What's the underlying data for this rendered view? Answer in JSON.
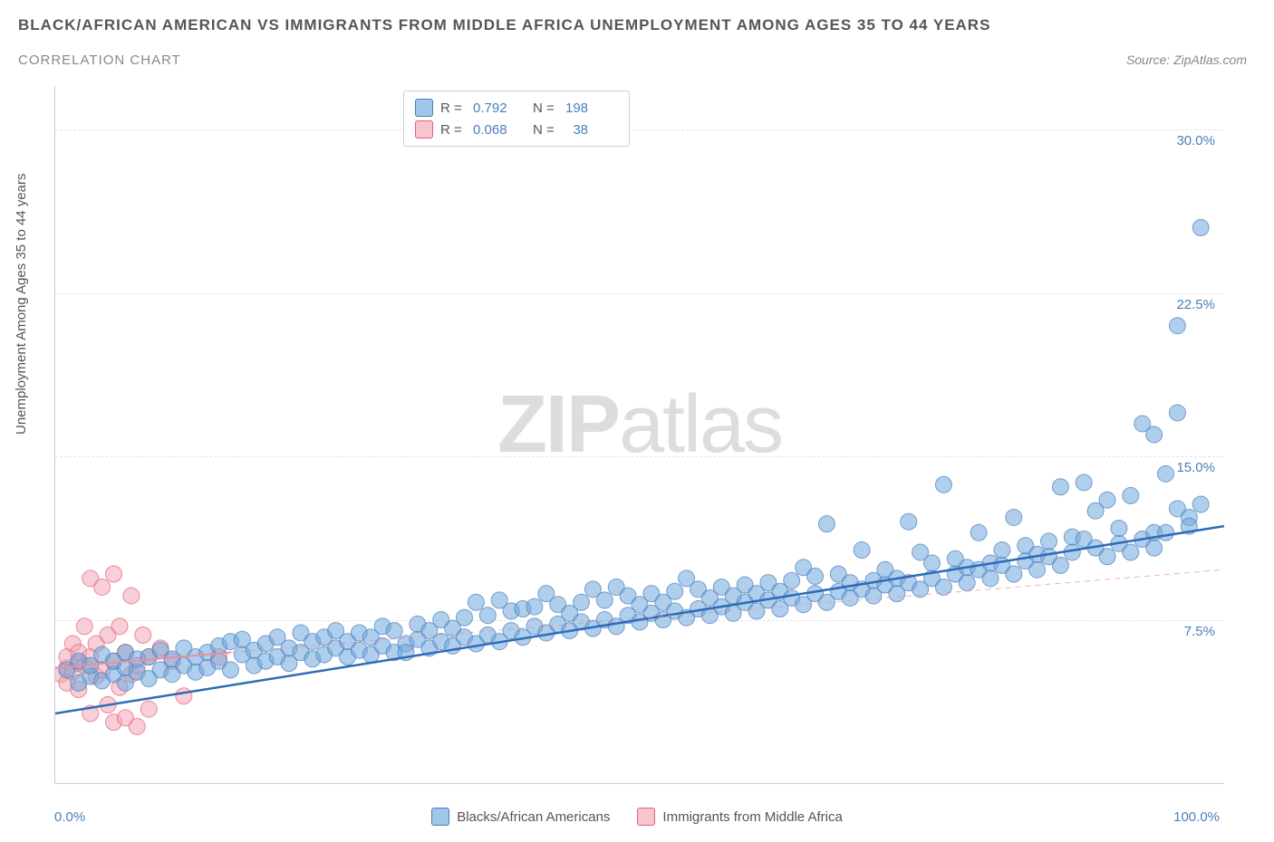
{
  "header": {
    "title": "BLACK/AFRICAN AMERICAN VS IMMIGRANTS FROM MIDDLE AFRICA UNEMPLOYMENT AMONG AGES 35 TO 44 YEARS",
    "subtitle": "CORRELATION CHART",
    "source": "Source: ZipAtlas.com"
  },
  "chart": {
    "type": "scatter",
    "ylabel": "Unemployment Among Ages 35 to 44 years",
    "xlim": [
      0,
      100
    ],
    "ylim": [
      0,
      32
    ],
    "yticks": [
      {
        "value": 7.5,
        "label": "7.5%"
      },
      {
        "value": 15.0,
        "label": "15.0%"
      },
      {
        "value": 22.5,
        "label": "22.5%"
      },
      {
        "value": 30.0,
        "label": "30.0%"
      }
    ],
    "xticks": [
      {
        "value": 0,
        "label": "0.0%"
      },
      {
        "value": 100,
        "label": "100.0%"
      }
    ],
    "grid_color": "#e5e5e5",
    "axis_color": "#cccccc",
    "background_color": "#ffffff",
    "marker_radius": 9,
    "marker_opacity": 0.55,
    "line_width_blue": 2.5,
    "line_width_pink_solid": 2,
    "line_width_pink_dash": 1,
    "series": {
      "blue": {
        "label": "Blacks/African Americans",
        "color": "#6fa8dc",
        "stroke": "#4a7ebb",
        "R": "0.792",
        "N": "198",
        "trend": {
          "x1": 0,
          "y1": 3.2,
          "x2": 100,
          "y2": 11.8
        },
        "points": [
          [
            1,
            5.2
          ],
          [
            2,
            4.6
          ],
          [
            2,
            5.6
          ],
          [
            3,
            4.9
          ],
          [
            3,
            5.4
          ],
          [
            4,
            4.7
          ],
          [
            4,
            5.9
          ],
          [
            5,
            5.0
          ],
          [
            5,
            5.6
          ],
          [
            6,
            4.6
          ],
          [
            6,
            5.3
          ],
          [
            6,
            6.0
          ],
          [
            7,
            5.1
          ],
          [
            7,
            5.7
          ],
          [
            8,
            4.8
          ],
          [
            8,
            5.8
          ],
          [
            9,
            5.2
          ],
          [
            9,
            6.1
          ],
          [
            10,
            5.0
          ],
          [
            10,
            5.7
          ],
          [
            11,
            5.4
          ],
          [
            11,
            6.2
          ],
          [
            12,
            5.1
          ],
          [
            12,
            5.8
          ],
          [
            13,
            5.3
          ],
          [
            13,
            6.0
          ],
          [
            14,
            5.6
          ],
          [
            14,
            6.3
          ],
          [
            15,
            5.2
          ],
          [
            15,
            6.5
          ],
          [
            16,
            5.9
          ],
          [
            16,
            6.6
          ],
          [
            17,
            5.4
          ],
          [
            17,
            6.1
          ],
          [
            18,
            5.6
          ],
          [
            18,
            6.4
          ],
          [
            19,
            5.8
          ],
          [
            19,
            6.7
          ],
          [
            20,
            5.5
          ],
          [
            20,
            6.2
          ],
          [
            21,
            6.0
          ],
          [
            21,
            6.9
          ],
          [
            22,
            5.7
          ],
          [
            22,
            6.5
          ],
          [
            23,
            5.9
          ],
          [
            23,
            6.7
          ],
          [
            24,
            6.2
          ],
          [
            24,
            7.0
          ],
          [
            25,
            5.8
          ],
          [
            25,
            6.5
          ],
          [
            26,
            6.1
          ],
          [
            26,
            6.9
          ],
          [
            27,
            5.9
          ],
          [
            27,
            6.7
          ],
          [
            28,
            6.3
          ],
          [
            28,
            7.2
          ],
          [
            29,
            6.0
          ],
          [
            29,
            7.0
          ],
          [
            30,
            6.4
          ],
          [
            30,
            6.0
          ],
          [
            31,
            6.6
          ],
          [
            31,
            7.3
          ],
          [
            32,
            6.2
          ],
          [
            32,
            7.0
          ],
          [
            33,
            6.5
          ],
          [
            33,
            7.5
          ],
          [
            34,
            6.3
          ],
          [
            34,
            7.1
          ],
          [
            35,
            6.7
          ],
          [
            35,
            7.6
          ],
          [
            36,
            6.4
          ],
          [
            36,
            8.3
          ],
          [
            37,
            6.8
          ],
          [
            37,
            7.7
          ],
          [
            38,
            6.5
          ],
          [
            38,
            8.4
          ],
          [
            39,
            7.0
          ],
          [
            39,
            7.9
          ],
          [
            40,
            6.7
          ],
          [
            40,
            8.0
          ],
          [
            41,
            7.2
          ],
          [
            41,
            8.1
          ],
          [
            42,
            6.9
          ],
          [
            42,
            8.7
          ],
          [
            43,
            7.3
          ],
          [
            43,
            8.2
          ],
          [
            44,
            7.0
          ],
          [
            44,
            7.8
          ],
          [
            45,
            7.4
          ],
          [
            45,
            8.3
          ],
          [
            46,
            7.1
          ],
          [
            46,
            8.9
          ],
          [
            47,
            7.5
          ],
          [
            47,
            8.4
          ],
          [
            48,
            7.2
          ],
          [
            48,
            9.0
          ],
          [
            49,
            7.7
          ],
          [
            49,
            8.6
          ],
          [
            50,
            7.4
          ],
          [
            50,
            8.2
          ],
          [
            51,
            7.8
          ],
          [
            51,
            8.7
          ],
          [
            52,
            7.5
          ],
          [
            52,
            8.3
          ],
          [
            53,
            7.9
          ],
          [
            53,
            8.8
          ],
          [
            54,
            7.6
          ],
          [
            54,
            9.4
          ],
          [
            55,
            8.0
          ],
          [
            55,
            8.9
          ],
          [
            56,
            7.7
          ],
          [
            56,
            8.5
          ],
          [
            57,
            8.1
          ],
          [
            57,
            9.0
          ],
          [
            58,
            7.8
          ],
          [
            58,
            8.6
          ],
          [
            59,
            8.3
          ],
          [
            59,
            9.1
          ],
          [
            60,
            7.9
          ],
          [
            60,
            8.7
          ],
          [
            61,
            8.4
          ],
          [
            61,
            9.2
          ],
          [
            62,
            8.0
          ],
          [
            62,
            8.8
          ],
          [
            63,
            8.5
          ],
          [
            63,
            9.3
          ],
          [
            64,
            8.2
          ],
          [
            64,
            9.9
          ],
          [
            65,
            8.7
          ],
          [
            65,
            9.5
          ],
          [
            66,
            8.3
          ],
          [
            66,
            11.9
          ],
          [
            67,
            8.8
          ],
          [
            67,
            9.6
          ],
          [
            68,
            8.5
          ],
          [
            68,
            9.2
          ],
          [
            69,
            8.9
          ],
          [
            69,
            10.7
          ],
          [
            70,
            8.6
          ],
          [
            70,
            9.3
          ],
          [
            71,
            9.1
          ],
          [
            71,
            9.8
          ],
          [
            72,
            8.7
          ],
          [
            72,
            9.4
          ],
          [
            73,
            9.2
          ],
          [
            73,
            12.0
          ],
          [
            74,
            8.9
          ],
          [
            74,
            10.6
          ],
          [
            75,
            9.4
          ],
          [
            75,
            10.1
          ],
          [
            76,
            9.0
          ],
          [
            76,
            13.7
          ],
          [
            77,
            9.6
          ],
          [
            77,
            10.3
          ],
          [
            78,
            9.2
          ],
          [
            78,
            9.9
          ],
          [
            79,
            9.8
          ],
          [
            79,
            11.5
          ],
          [
            80,
            9.4
          ],
          [
            80,
            10.1
          ],
          [
            81,
            10.0
          ],
          [
            81,
            10.7
          ],
          [
            82,
            9.6
          ],
          [
            82,
            12.2
          ],
          [
            83,
            10.2
          ],
          [
            83,
            10.9
          ],
          [
            84,
            9.8
          ],
          [
            84,
            10.5
          ],
          [
            85,
            10.4
          ],
          [
            85,
            11.1
          ],
          [
            86,
            10.0
          ],
          [
            86,
            13.6
          ],
          [
            87,
            10.6
          ],
          [
            87,
            11.3
          ],
          [
            88,
            11.2
          ],
          [
            88,
            13.8
          ],
          [
            89,
            10.8
          ],
          [
            89,
            12.5
          ],
          [
            90,
            10.4
          ],
          [
            90,
            13.0
          ],
          [
            91,
            11.0
          ],
          [
            91,
            11.7
          ],
          [
            92,
            10.6
          ],
          [
            92,
            13.2
          ],
          [
            93,
            11.2
          ],
          [
            93,
            16.5
          ],
          [
            94,
            10.8
          ],
          [
            94,
            11.5
          ],
          [
            94,
            16.0
          ],
          [
            95,
            11.5
          ],
          [
            95,
            14.2
          ],
          [
            96,
            12.6
          ],
          [
            96,
            17.0
          ],
          [
            96,
            21.0
          ],
          [
            97,
            12.2
          ],
          [
            97,
            11.8
          ],
          [
            98,
            12.8
          ],
          [
            98,
            25.5
          ]
        ]
      },
      "pink": {
        "label": "Immigrants from Middle Africa",
        "color": "#f4a6b4",
        "stroke": "#e06377",
        "R": "0.068",
        "N": "38",
        "trend_solid": {
          "x1": 0,
          "y1": 5.3,
          "x2": 15,
          "y2": 6.0
        },
        "trend_dash": {
          "x1": 15,
          "y1": 6.0,
          "x2": 100,
          "y2": 9.8
        },
        "points": [
          [
            0.5,
            5.0
          ],
          [
            1,
            5.3
          ],
          [
            1,
            5.8
          ],
          [
            1,
            4.6
          ],
          [
            1.5,
            6.4
          ],
          [
            1.5,
            5.1
          ],
          [
            2,
            5.5
          ],
          [
            2,
            6.0
          ],
          [
            2,
            4.3
          ],
          [
            2.5,
            7.2
          ],
          [
            2.5,
            5.4
          ],
          [
            3,
            5.8
          ],
          [
            3,
            3.2
          ],
          [
            3,
            9.4
          ],
          [
            3.5,
            6.4
          ],
          [
            3.5,
            4.9
          ],
          [
            4,
            5.2
          ],
          [
            4,
            9.0
          ],
          [
            4.5,
            6.8
          ],
          [
            4.5,
            3.6
          ],
          [
            5,
            5.6
          ],
          [
            5,
            9.6
          ],
          [
            5,
            2.8
          ],
          [
            5.5,
            7.2
          ],
          [
            5.5,
            4.4
          ],
          [
            6,
            6.0
          ],
          [
            6,
            3.0
          ],
          [
            6.5,
            8.6
          ],
          [
            6.5,
            5.0
          ],
          [
            7,
            5.4
          ],
          [
            7,
            2.6
          ],
          [
            7.5,
            6.8
          ],
          [
            8,
            5.8
          ],
          [
            8,
            3.4
          ],
          [
            9,
            6.2
          ],
          [
            10,
            5.6
          ],
          [
            11,
            4.0
          ],
          [
            14,
            5.8
          ]
        ]
      }
    },
    "legend_bottom": [
      {
        "swatch": "#9fc5e8",
        "border": "#4a7ebb",
        "label": "Blacks/African Americans"
      },
      {
        "swatch": "#f8c4cd",
        "border": "#e06377",
        "label": "Immigrants from Middle Africa"
      }
    ],
    "watermark": {
      "bold": "ZIP",
      "light": "atlas",
      "color": "#dddddd"
    }
  }
}
